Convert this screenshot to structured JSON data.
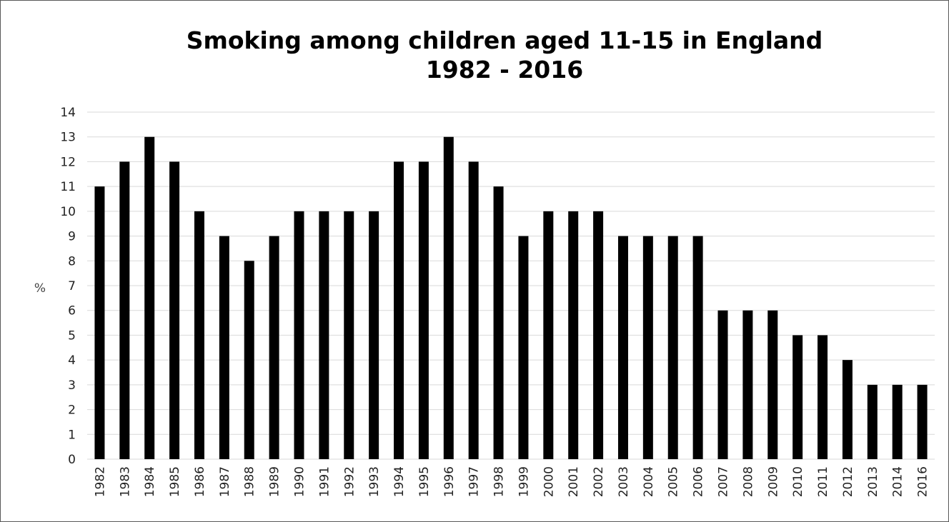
{
  "chart_data": {
    "type": "bar",
    "title": "Smoking among children aged 11-15 in England",
    "subtitle": "1982 - 2016",
    "xlabel": "",
    "ylabel": "%",
    "ylim": [
      0,
      14
    ],
    "yticks": [
      "0",
      "1",
      "2",
      "3",
      "4",
      "5",
      "6",
      "7",
      "8",
      "9",
      "10",
      "11",
      "12",
      "13",
      "14"
    ],
    "grid": true,
    "legend": "none",
    "bar_color": "#000000",
    "grid_color": "#d9d9d9",
    "categories": [
      "1982",
      "1983",
      "1984",
      "1985",
      "1986",
      "1987",
      "1988",
      "1989",
      "1990",
      "1991",
      "1992",
      "1993",
      "1994",
      "1995",
      "1996",
      "1997",
      "1998",
      "1999",
      "2000",
      "2001",
      "2002",
      "2003",
      "2004",
      "2005",
      "2006",
      "2007",
      "2008",
      "2009",
      "2010",
      "2011",
      "2012",
      "2013",
      "2014",
      "2016"
    ],
    "values": [
      11,
      12,
      13,
      12,
      10,
      9,
      8,
      9,
      10,
      10,
      10,
      10,
      12,
      12,
      13,
      12,
      11,
      9,
      10,
      10,
      10,
      9,
      9,
      9,
      9,
      6,
      6,
      6,
      5,
      5,
      4,
      3,
      3,
      3
    ]
  }
}
